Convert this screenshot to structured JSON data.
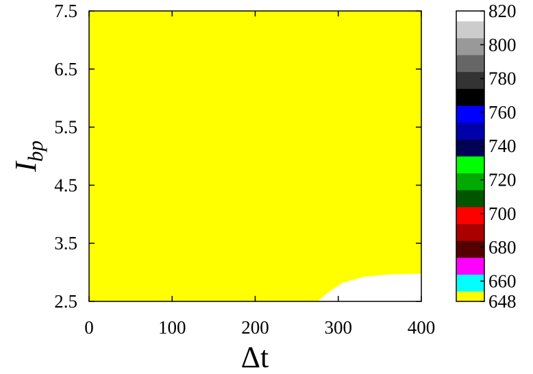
{
  "chart_data": {
    "type": "heatmap",
    "subtype": "filled-contour",
    "xlabel": "Δt",
    "ylabel_base": "I",
    "ylabel_sub": "bp",
    "xlim": [
      0,
      400
    ],
    "ylim": [
      2.5,
      7.5
    ],
    "x_ticks": [
      0,
      100,
      200,
      300,
      400
    ],
    "x_tick_labels": [
      "0",
      "100",
      "200",
      "300",
      "400"
    ],
    "y_ticks": [
      2.5,
      3.5,
      4.5,
      5.5,
      6.5,
      7.5
    ],
    "y_tick_labels": [
      "2.5",
      "3.5",
      "4.5",
      "5.5",
      "6.5",
      "7.5"
    ],
    "grid": false,
    "colorbar": {
      "range": [
        648,
        820
      ],
      "tick_values": [
        648,
        660,
        680,
        700,
        720,
        740,
        760,
        780,
        800,
        820
      ],
      "tick_labels": [
        "648",
        "660",
        "680",
        "700",
        "720",
        "740",
        "760",
        "780",
        "800",
        "820"
      ],
      "levels": [
        {
          "from": 648,
          "to": 654,
          "color": "#ffff00"
        },
        {
          "from": 654,
          "to": 664,
          "color": "#00ffff"
        },
        {
          "from": 664,
          "to": 674,
          "color": "#ff00ff"
        },
        {
          "from": 674,
          "to": 684,
          "color": "#550000"
        },
        {
          "from": 684,
          "to": 694,
          "color": "#aa0000"
        },
        {
          "from": 694,
          "to": 704,
          "color": "#ff0000"
        },
        {
          "from": 704,
          "to": 714,
          "color": "#005500"
        },
        {
          "from": 714,
          "to": 724,
          "color": "#00aa00"
        },
        {
          "from": 724,
          "to": 734,
          "color": "#00ff00"
        },
        {
          "from": 734,
          "to": 744,
          "color": "#000055"
        },
        {
          "from": 744,
          "to": 754,
          "color": "#0000aa"
        },
        {
          "from": 754,
          "to": 764,
          "color": "#0000ff"
        },
        {
          "from": 764,
          "to": 774,
          "color": "#000000"
        },
        {
          "from": 774,
          "to": 784,
          "color": "#333333"
        },
        {
          "from": 784,
          "to": 794,
          "color": "#666666"
        },
        {
          "from": 794,
          "to": 804,
          "color": "#999999"
        },
        {
          "from": 804,
          "to": 814,
          "color": "#cccccc"
        },
        {
          "from": 814,
          "to": 820,
          "color": "#ffffff"
        }
      ]
    },
    "band_boundaries": [
      {
        "level": 654,
        "points": [
          [
            40,
            7.5
          ],
          [
            44,
            7.46
          ],
          [
            50,
            7.43
          ],
          [
            56,
            7.43
          ],
          [
            62,
            7.46
          ],
          [
            66,
            7.5
          ]
        ]
      },
      {
        "level": 664,
        "points": [
          [
            25,
            7.5
          ],
          [
            32,
            7.2
          ],
          [
            40,
            7.0
          ],
          [
            50,
            6.88
          ],
          [
            58,
            6.86
          ],
          [
            66,
            6.9
          ],
          [
            74,
            7.08
          ],
          [
            80,
            7.3
          ],
          [
            85,
            7.5
          ]
        ]
      },
      {
        "level": 674,
        "points": [
          [
            17,
            7.5
          ],
          [
            25,
            7.05
          ],
          [
            34,
            6.6
          ],
          [
            44,
            6.38
          ],
          [
            55,
            6.3
          ],
          [
            66,
            6.35
          ],
          [
            76,
            6.55
          ],
          [
            86,
            6.95
          ],
          [
            95,
            7.5
          ]
        ]
      },
      {
        "level": 684,
        "points": [
          [
            12,
            7.5
          ],
          [
            18,
            7.0
          ],
          [
            26,
            6.55
          ],
          [
            36,
            6.15
          ],
          [
            50,
            5.88
          ],
          [
            64,
            5.82
          ],
          [
            78,
            5.9
          ],
          [
            90,
            6.2
          ],
          [
            100,
            6.7
          ],
          [
            108,
            7.5
          ]
        ]
      },
      {
        "level": 694,
        "points": [
          [
            8,
            7.5
          ],
          [
            14,
            6.9
          ],
          [
            22,
            6.3
          ],
          [
            32,
            5.85
          ],
          [
            45,
            5.5
          ],
          [
            60,
            5.38
          ],
          [
            74,
            5.42
          ],
          [
            88,
            5.68
          ],
          [
            100,
            6.1
          ],
          [
            110,
            6.7
          ],
          [
            120,
            7.5
          ]
        ]
      },
      {
        "level": 704,
        "points": [
          [
            5,
            7.5
          ],
          [
            10,
            6.8
          ],
          [
            18,
            6.1
          ],
          [
            28,
            5.55
          ],
          [
            42,
            5.05
          ],
          [
            58,
            4.88
          ],
          [
            74,
            4.92
          ],
          [
            88,
            5.18
          ],
          [
            102,
            5.62
          ],
          [
            114,
            6.3
          ],
          [
            124,
            7.0
          ],
          [
            130,
            7.5
          ]
        ]
      },
      {
        "level": 714,
        "points": [
          [
            3,
            7.5
          ],
          [
            6,
            6.9
          ],
          [
            12,
            6.1
          ],
          [
            22,
            5.35
          ],
          [
            36,
            4.78
          ],
          [
            52,
            4.47
          ],
          [
            70,
            4.45
          ],
          [
            88,
            4.72
          ],
          [
            104,
            5.22
          ],
          [
            118,
            6.0
          ],
          [
            128,
            6.8
          ],
          [
            138,
            7.5
          ]
        ]
      },
      {
        "level": 724,
        "points": [
          [
            1,
            7.5
          ],
          [
            3,
            6.9
          ],
          [
            8,
            6.0
          ],
          [
            16,
            5.15
          ],
          [
            30,
            4.5
          ],
          [
            46,
            4.1
          ],
          [
            64,
            3.98
          ],
          [
            84,
            4.2
          ],
          [
            102,
            4.72
          ],
          [
            118,
            5.45
          ],
          [
            132,
            6.3
          ],
          [
            144,
            7.1
          ],
          [
            152,
            7.5
          ]
        ]
      },
      {
        "level": 734,
        "points": [
          [
            0,
            6.72
          ],
          [
            4,
            5.9
          ],
          [
            12,
            4.95
          ],
          [
            24,
            4.25
          ],
          [
            40,
            3.78
          ],
          [
            60,
            3.63
          ],
          [
            80,
            3.72
          ],
          [
            98,
            4.1
          ],
          [
            114,
            4.7
          ],
          [
            130,
            5.4
          ],
          [
            146,
            6.3
          ],
          [
            160,
            7.0
          ],
          [
            172,
            7.5
          ]
        ]
      },
      {
        "level": 744,
        "points": [
          [
            0,
            5.92
          ],
          [
            6,
            5.0
          ],
          [
            16,
            4.15
          ],
          [
            30,
            3.6
          ],
          [
            48,
            3.3
          ],
          [
            70,
            3.22
          ],
          [
            92,
            3.42
          ],
          [
            112,
            3.85
          ],
          [
            132,
            4.55
          ],
          [
            150,
            5.35
          ],
          [
            168,
            6.15
          ],
          [
            186,
            6.9
          ],
          [
            202,
            7.5
          ]
        ]
      },
      {
        "level": 754,
        "points": [
          [
            0,
            5.2
          ],
          [
            6,
            4.4
          ],
          [
            18,
            3.7
          ],
          [
            34,
            3.18
          ],
          [
            54,
            2.93
          ],
          [
            78,
            2.9
          ],
          [
            100,
            3.08
          ],
          [
            122,
            3.5
          ],
          [
            144,
            4.15
          ],
          [
            166,
            4.95
          ],
          [
            184,
            5.55
          ],
          [
            200,
            5.92
          ],
          [
            214,
            6.1
          ],
          [
            234,
            6.18
          ],
          [
            260,
            6.22
          ],
          [
            300,
            6.25
          ],
          [
            340,
            6.26
          ],
          [
            400,
            6.27
          ]
        ]
      },
      {
        "level": 764,
        "points": [
          [
            0,
            4.48
          ],
          [
            8,
            3.8
          ],
          [
            22,
            3.18
          ],
          [
            42,
            2.78
          ],
          [
            66,
            2.6
          ],
          [
            90,
            2.6
          ],
          [
            112,
            2.74
          ],
          [
            134,
            3.1
          ],
          [
            156,
            3.72
          ],
          [
            178,
            4.55
          ],
          [
            194,
            5.12
          ],
          [
            208,
            5.48
          ],
          [
            224,
            5.65
          ],
          [
            250,
            5.75
          ],
          [
            290,
            5.8
          ],
          [
            340,
            5.82
          ],
          [
            400,
            5.84
          ]
        ]
      },
      {
        "level": 774,
        "points": [
          [
            0,
            3.88
          ],
          [
            10,
            3.3
          ],
          [
            24,
            2.86
          ],
          [
            38,
            2.62
          ],
          [
            50,
            2.5
          ],
          [
            156,
            2.5
          ],
          [
            168,
            2.88
          ],
          [
            184,
            3.52
          ],
          [
            200,
            4.22
          ],
          [
            214,
            4.68
          ],
          [
            230,
            4.95
          ],
          [
            260,
            5.08
          ],
          [
            300,
            5.12
          ],
          [
            350,
            5.13
          ],
          [
            400,
            5.13
          ]
        ]
      },
      {
        "level": 784,
        "points": [
          [
            0,
            3.32
          ],
          [
            10,
            2.93
          ],
          [
            22,
            2.65
          ],
          [
            32,
            2.5
          ],
          [
            180,
            2.5
          ],
          [
            192,
            2.84
          ],
          [
            206,
            3.3
          ],
          [
            222,
            3.82
          ],
          [
            240,
            4.18
          ],
          [
            264,
            4.38
          ],
          [
            300,
            4.48
          ],
          [
            350,
            4.51
          ],
          [
            400,
            4.52
          ]
        ]
      },
      {
        "level": 794,
        "points": [
          [
            0,
            2.98
          ],
          [
            8,
            2.72
          ],
          [
            16,
            2.5
          ],
          [
            202,
            2.5
          ],
          [
            214,
            2.84
          ],
          [
            230,
            3.22
          ],
          [
            250,
            3.55
          ],
          [
            274,
            3.78
          ],
          [
            306,
            3.9
          ],
          [
            350,
            3.95
          ],
          [
            400,
            3.97
          ]
        ]
      },
      {
        "level": 804,
        "points": [
          [
            0,
            2.72
          ],
          [
            6,
            2.5
          ],
          [
            232,
            2.5
          ],
          [
            246,
            2.78
          ],
          [
            266,
            3.05
          ],
          [
            290,
            3.27
          ],
          [
            320,
            3.37
          ],
          [
            360,
            3.42
          ],
          [
            400,
            3.44
          ]
        ]
      },
      {
        "level": 814,
        "points": [
          [
            275,
            2.5
          ],
          [
            288,
            2.66
          ],
          [
            306,
            2.83
          ],
          [
            332,
            2.93
          ],
          [
            366,
            2.97
          ],
          [
            400,
            2.98
          ]
        ]
      }
    ]
  }
}
